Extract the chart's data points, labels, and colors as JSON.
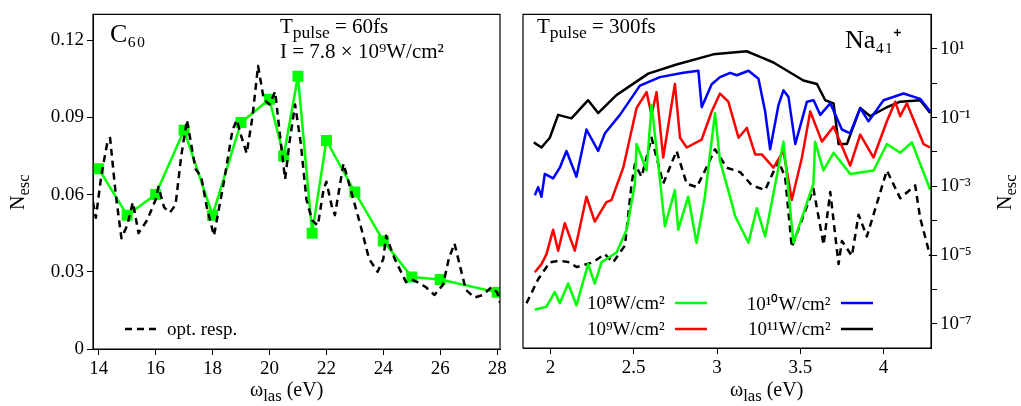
{
  "chart_data": [
    {
      "type": "line",
      "xlabel": "ω$_{las}$ (eV)",
      "ylabel": "N$_{esc}$",
      "xlim": [
        13.8,
        28.1
      ],
      "xticks": [
        14,
        16,
        18,
        20,
        22,
        24,
        26,
        28
      ],
      "ylim": [
        0,
        0.13
      ],
      "yticks": [
        0,
        0.03,
        0.06,
        0.09,
        0.12
      ],
      "legend": "bottom left",
      "annotations": [
        "C₆₀",
        "T$_{pulse}$ = 60fs",
        "I = 7.8 × 10⁹W/cm²"
      ],
      "series": [
        {
          "name": "opt. resp.",
          "color": "#000000",
          "line_style": "dashed",
          "marker": "none",
          "x": [
            13.8,
            13.9,
            14.1,
            14.3,
            14.4,
            14.6,
            14.8,
            15.0,
            15.2,
            15.4,
            15.7,
            16.0,
            16.1,
            16.3,
            16.5,
            16.7,
            16.9,
            17.1,
            17.4,
            17.6,
            17.8,
            18.05,
            18.4,
            18.7,
            18.85,
            19.0,
            19.2,
            19.4,
            19.6,
            19.8,
            20.0,
            20.2,
            20.4,
            20.55,
            20.7,
            20.9,
            21.1,
            21.3,
            21.5,
            21.7,
            21.9,
            22.0,
            22.2,
            22.3,
            22.6,
            22.9,
            23.2,
            23.5,
            23.8,
            24.0,
            24.1,
            24.4,
            24.8,
            25.0,
            25.2,
            25.5,
            25.8,
            26.1,
            26.3,
            26.5,
            26.7,
            26.9,
            27.2,
            27.5,
            27.8,
            28.0,
            28.1
          ],
          "values": [
            0.057,
            0.051,
            0.068,
            0.08,
            0.082,
            0.06,
            0.043,
            0.048,
            0.057,
            0.045,
            0.05,
            0.058,
            0.063,
            0.055,
            0.053,
            0.056,
            0.075,
            0.089,
            0.07,
            0.067,
            0.055,
            0.044,
            0.065,
            0.085,
            0.089,
            0.083,
            0.076,
            0.09,
            0.11,
            0.097,
            0.095,
            0.1,
            0.08,
            0.066,
            0.08,
            0.095,
            0.08,
            0.058,
            0.05,
            0.048,
            0.062,
            0.065,
            0.055,
            0.052,
            0.072,
            0.06,
            0.048,
            0.035,
            0.03,
            0.035,
            0.044,
            0.035,
            0.026,
            0.027,
            0.026,
            0.024,
            0.021,
            0.025,
            0.035,
            0.041,
            0.032,
            0.023,
            0.02,
            0.021,
            0.024,
            0.022,
            0.018
          ]
        },
        {
          "color": "#00ff00",
          "line_style": "solid",
          "marker": "square",
          "x": [
            14,
            15,
            16,
            17,
            18,
            19,
            20,
            20.5,
            21,
            21.5,
            22,
            23,
            24,
            25,
            26,
            28
          ],
          "values": [
            0.07,
            0.052,
            0.06,
            0.085,
            0.052,
            0.088,
            0.097,
            0.075,
            0.106,
            0.045,
            0.081,
            0.061,
            0.042,
            0.028,
            0.027,
            0.022
          ]
        }
      ]
    },
    {
      "type": "line",
      "xlabel": "ω$_{las}$ (eV)",
      "y2label": "N$_{esc}$",
      "log": "y2",
      "xlim": [
        1.835,
        4.285
      ],
      "xticks": [
        2,
        2.5,
        3,
        3.5,
        4
      ],
      "y2lim": [
        2e-08,
        100
      ],
      "y2ticks": [
        {
          "value": 10,
          "label": "10¹"
        },
        {
          "value": 1,
          "label": null
        },
        {
          "value": 0.1,
          "label": "10⁻¹"
        },
        {
          "value": 0.01,
          "label": null
        },
        {
          "value": 0.001,
          "label": "10⁻³"
        },
        {
          "value": 0.0001,
          "label": null
        },
        {
          "value": 1e-05,
          "label": "10⁻⁵"
        },
        {
          "value": 1e-06,
          "label": null
        },
        {
          "value": 1e-07,
          "label": "10⁻⁷"
        }
      ],
      "legend": "bottom right",
      "annotations": [
        "T$_{pulse}$ = 300fs",
        "Na₄₁⁺"
      ],
      "series": [
        {
          "name": "10⁸W/cm²",
          "color": "#00ff00",
          "axis": "y2",
          "line_style": "solid",
          "marker": "none",
          "x": [
            1.906,
            1.976,
            2.026,
            2.056,
            2.106,
            2.156,
            2.226,
            2.266,
            2.306,
            2.397,
            2.457,
            2.507,
            2.517,
            2.577,
            2.607,
            2.647,
            2.687,
            2.747,
            2.767,
            2.827,
            2.877,
            2.927,
            2.988,
            3.018,
            3.089,
            3.109,
            3.189,
            3.239,
            3.289,
            3.399,
            3.459,
            3.579,
            3.589,
            3.639,
            3.7,
            3.8,
            3.94,
            4.02,
            4.1,
            4.17,
            4.28
          ],
          "values": [
            2.6e-07,
            3.2e-07,
            8.5e-07,
            4e-07,
            1.5e-06,
            3.5e-07,
            5.5e-06,
            1.5e-06,
            6.2e-06,
            1.2e-05,
            5.5e-05,
            0.0012,
            0.017,
            0.0029,
            0.23,
            0.0045,
            6.9e-05,
            0.00078,
            5.5e-05,
            0.0005,
            2.3e-05,
            0.0005,
            0.135,
            0.0055,
            0.00032,
            0.000135,
            2.3e-05,
            0.00023,
            3.5e-05,
            0.02,
            2.3e-05,
            0.0012,
            0.02,
            0.0029,
            0.0095,
            0.0023,
            0.0029,
            0.017,
            0.0095,
            0.019,
            0.00081
          ]
        },
        {
          "name": "10⁹W/cm²",
          "color": "#ff0000",
          "axis": "y2",
          "line_style": "solid",
          "marker": "none",
          "x": [
            1.906,
            1.946,
            1.976,
            2.016,
            2.046,
            2.086,
            2.146,
            2.216,
            2.266,
            2.336,
            2.366,
            2.437,
            2.517,
            2.577,
            2.607,
            2.637,
            2.677,
            2.747,
            2.778,
            2.818,
            2.908,
            2.968,
            3.018,
            3.068,
            3.129,
            3.179,
            3.229,
            3.269,
            3.339,
            3.399,
            3.449,
            3.51,
            3.56,
            3.63,
            3.7,
            3.8,
            3.86,
            3.94,
            4.02,
            4.07,
            4.1,
            4.14,
            4.24,
            4.28
          ],
          "values": [
            3.2e-06,
            5.5e-06,
            1.07e-05,
            5.5e-05,
            1.35e-05,
            8.5e-05,
            1.35e-05,
            0.0005,
            9.5e-05,
            0.00035,
            0.0004,
            0.0035,
            0.19,
            0.55,
            0.12,
            0.55,
            0.0069,
            0.95,
            0.026,
            0.0135,
            0.023,
            0.15,
            0.5,
            0.29,
            0.026,
            0.05,
            0.0085,
            0.0085,
            0.0035,
            0.0107,
            0.0004,
            0.0069,
            0.15,
            0.02,
            0.055,
            0.004,
            0.032,
            0.0069,
            0.078,
            0.29,
            0.11,
            0.26,
            0.017,
            0.0135
          ]
        },
        {
          "name": "10¹⁰W/cm²",
          "color": "#0000ff",
          "axis": "y2",
          "line_style": "solid",
          "marker": "none",
          "x": [
            1.906,
            1.926,
            1.946,
            1.966,
            2.016,
            2.056,
            2.096,
            2.156,
            2.216,
            2.286,
            2.327,
            2.417,
            2.537,
            2.657,
            2.798,
            2.888,
            2.908,
            2.968,
            3.018,
            3.079,
            3.119,
            3.189,
            3.249,
            3.289,
            3.319,
            3.369,
            3.399,
            3.429,
            3.47,
            3.54,
            3.58,
            3.62,
            3.68,
            3.75,
            3.8,
            3.86,
            3.91,
            4.0,
            4.12,
            4.22,
            4.28
          ],
          "values": [
            0.00055,
            0.00095,
            0.0005,
            0.0023,
            0.0017,
            0.0035,
            0.0107,
            0.0019,
            0.045,
            0.0107,
            0.035,
            0.12,
            0.85,
            1.5,
            2.0,
            2.3,
            0.2,
            0.93,
            1.5,
            2.0,
            1.7,
            2.3,
            1.35,
            0.15,
            0.012,
            0.23,
            0.62,
            0.4,
            0.017,
            0.29,
            0.32,
            0.12,
            0.26,
            0.045,
            0.035,
            0.19,
            0.078,
            0.32,
            0.5,
            0.35,
            0.15
          ]
        },
        {
          "name": "10¹¹W/cm²",
          "color": "#000000",
          "axis": "y2",
          "line_style": "solid",
          "marker": "none",
          "x": [
            1.9,
            1.946,
            1.996,
            2.046,
            2.126,
            2.226,
            2.286,
            2.396,
            2.587,
            2.757,
            2.978,
            3.178,
            3.339,
            3.519,
            3.6,
            3.65,
            3.7,
            3.73,
            3.78,
            3.86,
            3.92,
            4.02,
            4.1,
            4.22,
            4.28
          ],
          "values": [
            0.019,
            0.0135,
            0.026,
            0.12,
            0.095,
            0.32,
            0.135,
            0.45,
            1.9,
            3.5,
            6.9,
            8.5,
            4.0,
            1.2,
            0.95,
            0.32,
            0.26,
            0.017,
            0.017,
            0.19,
            0.11,
            0.2,
            0.29,
            0.32,
            0.135
          ]
        },
        {
          "color": "#000000",
          "axis": "y2",
          "line_style": "dashed",
          "marker": "none",
          "x": [
            1.856,
            1.926,
            1.996,
            2.056,
            2.116,
            2.156,
            2.256,
            2.326,
            2.376,
            2.447,
            2.487,
            2.507,
            2.547,
            2.607,
            2.677,
            2.757,
            2.818,
            2.878,
            2.928,
            2.988,
            3.058,
            3.139,
            3.209,
            3.289,
            3.369,
            3.409,
            3.449,
            3.579,
            3.64,
            3.68,
            3.73,
            3.75,
            3.81,
            3.85,
            3.9,
            4.02,
            4.1,
            4.19,
            4.22,
            4.28
          ],
          "values": [
            4e-07,
            2e-06,
            6.2e-06,
            6.9e-06,
            6.2e-06,
            4.5e-06,
            6.2e-06,
            1.07e-05,
            6.2e-06,
            1.9e-05,
            0.0012,
            0.0045,
            0.0019,
            0.026,
            0.0012,
            0.0107,
            0.0012,
            0.00095,
            0.0029,
            0.012,
            0.0035,
            0.0026,
            0.00107,
            0.00078,
            0.0055,
            0.0019,
            1.7e-05,
            0.00085,
            2e-05,
            0.00069,
            5.5e-06,
            2.6e-05,
            9.5e-06,
            0.00015,
            3.5e-05,
            0.0029,
            0.00045,
            0.00107,
            0.00012,
            9.5e-06
          ]
        }
      ]
    }
  ]
}
